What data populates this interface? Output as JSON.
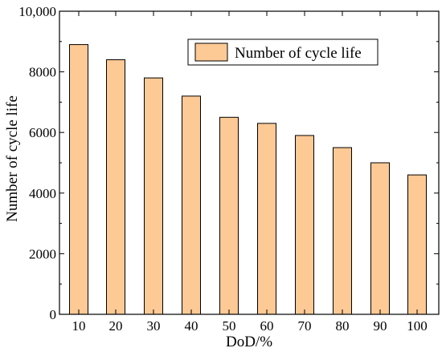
{
  "chart_data": {
    "type": "bar",
    "categories": [
      "10",
      "20",
      "30",
      "40",
      "50",
      "60",
      "70",
      "80",
      "90",
      "100"
    ],
    "series": [
      {
        "name": "Number of cycle life",
        "values": [
          8900,
          8400,
          7800,
          7200,
          6500,
          6300,
          5900,
          5500,
          5000,
          4600
        ],
        "color": "#fdc995"
      }
    ],
    "xlabel": "DoD/%",
    "ylabel": "Number of cycle life",
    "ylim": [
      0,
      10000
    ],
    "yticks": [
      "0",
      "2000",
      "4000",
      "6000",
      "8000",
      "10,000"
    ],
    "ytick_values": [
      0,
      2000,
      4000,
      6000,
      8000,
      10000
    ],
    "grid": false,
    "legend": {
      "position": "top-right",
      "label": "Number of cycle life"
    },
    "bar_edge_color": "#000000"
  }
}
